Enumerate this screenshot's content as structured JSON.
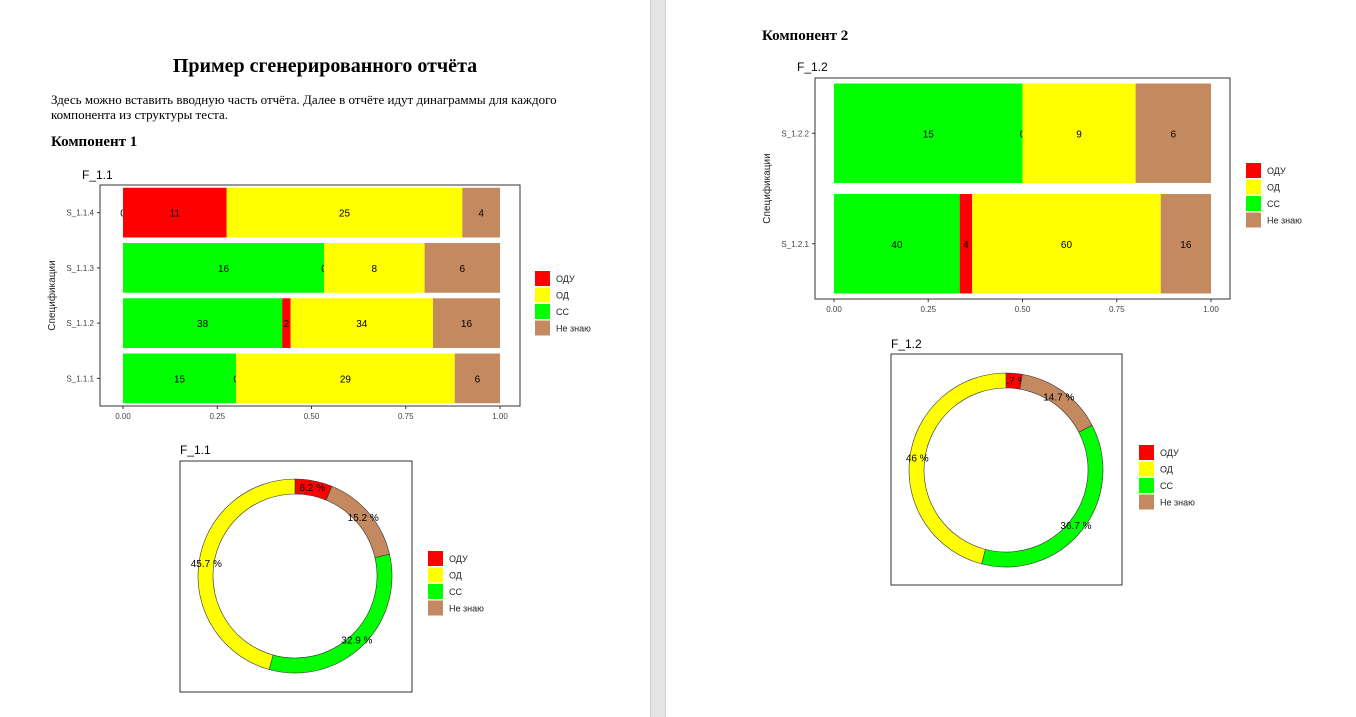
{
  "report": {
    "title": "Пример сгенерированного отчёта",
    "intro": "Здесь можно вставить вводную часть отчёта. Далее в отчёте идут динаграммы для каждого компонента из структуры теста.",
    "component1_heading": "Компонент 1",
    "component2_heading": "Компонент 2"
  },
  "colors": {
    "ОДУ": "#ff0000",
    "ОД": "#ffff00",
    "СС": "#00ff00",
    "Не знаю": "#c4895f"
  },
  "chart_data": [
    {
      "type": "bar",
      "orientation": "horizontal",
      "stacked": "percent",
      "title": "F_1.1",
      "ylabel": "Спецификации",
      "xlabel": "",
      "xlim": [
        0,
        1
      ],
      "xticks": [
        "0.00",
        "0.25",
        "0.50",
        "0.75",
        "1.00"
      ],
      "legend_position": "right",
      "categories": [
        "S_1.1.4",
        "S_1.1.3",
        "S_1.1.2",
        "S_1.1.1"
      ],
      "series": [
        {
          "name": "СС",
          "values": [
            0,
            16,
            38,
            15
          ]
        },
        {
          "name": "ОДУ",
          "values": [
            11,
            0,
            2,
            0
          ]
        },
        {
          "name": "ОД",
          "values": [
            25,
            8,
            34,
            29
          ]
        },
        {
          "name": "Не знаю",
          "values": [
            4,
            6,
            16,
            6
          ]
        }
      ],
      "legend": [
        "ОДУ",
        "ОД",
        "СС",
        "Не знаю"
      ]
    },
    {
      "type": "pie",
      "donut": true,
      "title": "F_1.1",
      "legend_position": "right",
      "slices": [
        {
          "name": "ОДУ",
          "value": 6.2,
          "label": "6.2 %"
        },
        {
          "name": "Не знаю",
          "value": 15.2,
          "label": "15.2 %"
        },
        {
          "name": "СС",
          "value": 32.9,
          "label": "32.9 %"
        },
        {
          "name": "ОД",
          "value": 45.7,
          "label": "45.7 %"
        }
      ],
      "legend": [
        "ОДУ",
        "ОД",
        "СС",
        "Не знаю"
      ]
    },
    {
      "type": "bar",
      "orientation": "horizontal",
      "stacked": "percent",
      "title": "F_1.2",
      "ylabel": "Спецификации",
      "xlabel": "",
      "xlim": [
        0,
        1
      ],
      "xticks": [
        "0.00",
        "0.25",
        "0.50",
        "0.75",
        "1.00"
      ],
      "legend_position": "right",
      "categories": [
        "S_1.2.2",
        "S_1.2.1"
      ],
      "series": [
        {
          "name": "СС",
          "values": [
            15,
            40
          ]
        },
        {
          "name": "ОДУ",
          "values": [
            0,
            4
          ]
        },
        {
          "name": "ОД",
          "values": [
            9,
            60
          ]
        },
        {
          "name": "Не знаю",
          "values": [
            6,
            16
          ]
        }
      ],
      "legend": [
        "ОДУ",
        "ОД",
        "СС",
        "Не знаю"
      ]
    },
    {
      "type": "pie",
      "donut": true,
      "title": "F_1.2",
      "legend_position": "right",
      "slices": [
        {
          "name": "ОДУ",
          "value": 2.7,
          "label": "2.7 %"
        },
        {
          "name": "Не знаю",
          "value": 14.7,
          "label": "14.7 %"
        },
        {
          "name": "СС",
          "value": 36.7,
          "label": "36.7 %"
        },
        {
          "name": "ОД",
          "value": 46,
          "label": "46 %"
        }
      ],
      "legend": [
        "ОДУ",
        "ОД",
        "СС",
        "Не знаю"
      ]
    }
  ]
}
